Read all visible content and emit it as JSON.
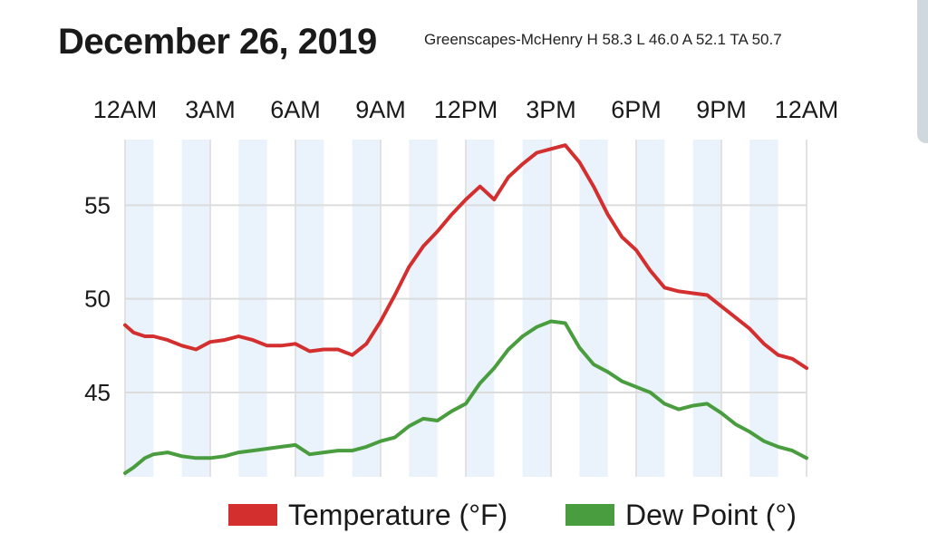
{
  "header": {
    "title": "December 26, 2019",
    "station_summary": "Greenscapes-McHenry H 58.3 L 46.0 A 52.1 TA 50.7"
  },
  "chart_data": {
    "type": "line",
    "title": "December 26, 2019",
    "subtitle": "Greenscapes-McHenry H 58.3 L 46.0 A 52.1 TA 50.7",
    "x_tick_labels": [
      "12AM",
      "3AM",
      "6AM",
      "9AM",
      "12PM",
      "3PM",
      "6PM",
      "9PM",
      "12AM"
    ],
    "x_tick_hours": [
      0,
      3,
      6,
      9,
      12,
      15,
      18,
      21,
      24
    ],
    "xlim": [
      0,
      24
    ],
    "ylim": [
      40.5,
      58.5
    ],
    "y_ticks": [
      45,
      50,
      55
    ],
    "grid": true,
    "legend_position": "bottom",
    "series": [
      {
        "name": "Temperature (°F)",
        "color": "#d32f2f",
        "x": [
          0,
          0.3,
          0.7,
          1,
          1.5,
          2,
          2.5,
          3,
          3.5,
          4,
          4.5,
          5,
          5.5,
          6,
          6.5,
          7,
          7.5,
          8,
          8.5,
          9,
          9.5,
          10,
          10.5,
          11,
          11.5,
          12,
          12.5,
          13,
          13.5,
          14,
          14.5,
          15,
          15.5,
          16,
          16.5,
          17,
          17.5,
          18,
          18.5,
          19,
          19.5,
          20,
          20.5,
          21,
          21.5,
          22,
          22.5,
          23,
          23.5,
          24
        ],
        "values": [
          48.6,
          48.2,
          48.0,
          48.0,
          47.8,
          47.5,
          47.3,
          47.7,
          47.8,
          48.0,
          47.8,
          47.5,
          47.5,
          47.6,
          47.2,
          47.3,
          47.3,
          47.0,
          47.6,
          48.8,
          50.2,
          51.7,
          52.8,
          53.6,
          54.5,
          55.3,
          56.0,
          55.3,
          56.5,
          57.2,
          57.8,
          58.0,
          58.2,
          57.3,
          56.0,
          54.5,
          53.3,
          52.6,
          51.5,
          50.6,
          50.4,
          50.3,
          50.2,
          49.6,
          49.0,
          48.4,
          47.6,
          47.0,
          46.8,
          46.3
        ]
      },
      {
        "name": "Dew Point (°)",
        "color": "#4a9d3f",
        "x": [
          0,
          0.3,
          0.7,
          1,
          1.5,
          2,
          2.5,
          3,
          3.5,
          4,
          4.5,
          5,
          5.5,
          6,
          6.5,
          7,
          7.5,
          8,
          8.5,
          9,
          9.5,
          10,
          10.5,
          11,
          11.5,
          12,
          12.5,
          13,
          13.5,
          14,
          14.5,
          15,
          15.5,
          16,
          16.5,
          17,
          17.5,
          18,
          18.5,
          19,
          19.5,
          20,
          20.5,
          21,
          21.5,
          22,
          22.5,
          23,
          23.5,
          24
        ],
        "values": [
          40.7,
          41.0,
          41.5,
          41.7,
          41.8,
          41.6,
          41.5,
          41.5,
          41.6,
          41.8,
          41.9,
          42.0,
          42.1,
          42.2,
          41.7,
          41.8,
          41.9,
          41.9,
          42.1,
          42.4,
          42.6,
          43.2,
          43.6,
          43.5,
          44.0,
          44.4,
          45.5,
          46.3,
          47.3,
          48.0,
          48.5,
          48.8,
          48.7,
          47.4,
          46.5,
          46.1,
          45.6,
          45.3,
          45.0,
          44.4,
          44.1,
          44.3,
          44.4,
          43.9,
          43.3,
          42.9,
          42.4,
          42.1,
          41.9,
          41.5
        ]
      }
    ]
  }
}
